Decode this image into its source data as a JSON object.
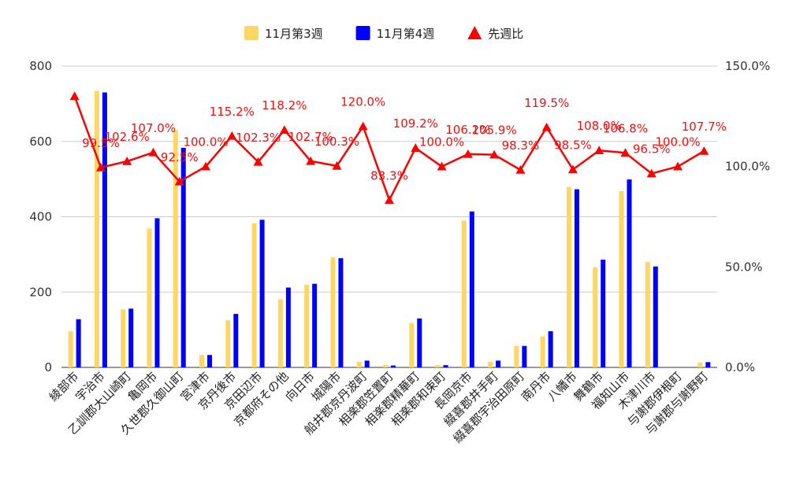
{
  "chart_data": {
    "type": "bar",
    "categories": [
      "綾部市",
      "宇治市",
      "乙訓郡大山崎町",
      "亀岡市",
      "久世郡久御山町",
      "宮津市",
      "京丹後市",
      "京田辺市",
      "京都府その他",
      "向日市",
      "城陽市",
      "船井郡京丹波町",
      "相楽郡笠置町",
      "相楽郡精華町",
      "相楽郡和束町",
      "長岡京市",
      "綴喜郡井手町",
      "綴喜郡宇治田原町",
      "南丹市",
      "八幡市",
      "舞鶴市",
      "福知山市",
      "木津川市",
      "与謝郡伊根町",
      "与謝郡与謝野町"
    ],
    "series": [
      {
        "name": "11月第3週",
        "type": "bar",
        "axis": "left",
        "color": "#fdd663",
        "values": [
          96,
          734,
          154,
          369,
          630,
          33,
          125,
          383,
          181,
          219,
          292,
          15,
          6,
          118,
          6,
          390,
          15,
          57,
          82,
          479,
          266,
          468,
          280,
          0,
          13
        ]
      },
      {
        "name": "11月第4週",
        "type": "bar",
        "axis": "left",
        "color": "#0000ff",
        "values": [
          128,
          730,
          156,
          396,
          583,
          33,
          142,
          392,
          212,
          222,
          290,
          18,
          5,
          130,
          6,
          414,
          18,
          57,
          96,
          473,
          286,
          499,
          268,
          0,
          14
        ]
      },
      {
        "name": "先週比",
        "type": "line",
        "axis": "right",
        "color": "#ff0000",
        "values": [
          135.0,
          99.5,
          102.6,
          107.0,
          92.5,
          100.0,
          115.2,
          102.3,
          118.2,
          102.7,
          100.3,
          120.0,
          83.3,
          109.2,
          100.0,
          106.2,
          105.9,
          98.3,
          119.5,
          98.5,
          108.0,
          106.8,
          96.5,
          100.0,
          107.7
        ],
        "labels": [
          "",
          "99.5%",
          "102.6%",
          "107.0%",
          "92.5%",
          "100.0%",
          "115.2%",
          "102.3%",
          "118.2%",
          "102.7%",
          "100.3%",
          "120.0%",
          "83.3%",
          "109.2%",
          "100.0%",
          "106.2%",
          "105.9%",
          "98.3%",
          "119.5%",
          "98.5%",
          "108.0%",
          "106.8%",
          "96.5%",
          "100.0%",
          "107.7%"
        ]
      }
    ],
    "y_left": {
      "min": 0,
      "max": 800,
      "ticks": [
        "0",
        "200",
        "400",
        "600",
        "800"
      ]
    },
    "y_right": {
      "min": 0,
      "max": 150,
      "ticks": [
        "0.0%",
        "50.0%",
        "100.0%",
        "150.0%"
      ]
    },
    "grid": true,
    "legend": "top-center"
  }
}
